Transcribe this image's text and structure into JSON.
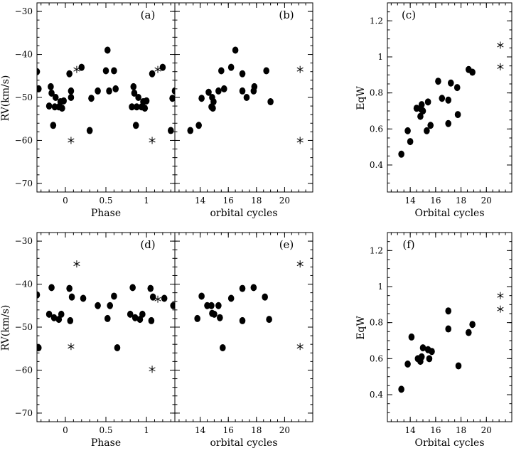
{
  "chart_data": [
    {
      "id": "a",
      "type": "scatter",
      "panel_label": "(a)",
      "xlabel": "Phase",
      "ylabel": "RV(km/s)",
      "xlim": [
        -0.35,
        1.35
      ],
      "ylim": [
        -72,
        -28
      ],
      "xticks": [
        0,
        0.5,
        1
      ],
      "xtick_labels": [
        "0",
        "0.5",
        "1"
      ],
      "yticks": [
        -30,
        -40,
        -50,
        -60,
        -70
      ],
      "ytick_labels": [
        "−30",
        "−40",
        "−50",
        "−60",
        "−70"
      ],
      "series": [
        {
          "marker": "dot",
          "points": [
            [
              -0.35,
              -44
            ],
            [
              -0.33,
              -48
            ],
            [
              -0.2,
              -52
            ],
            [
              -0.18,
              -47.5
            ],
            [
              -0.17,
              -49
            ],
            [
              -0.15,
              -56.5
            ],
            [
              -0.13,
              -52.2
            ],
            [
              -0.12,
              -50
            ],
            [
              -0.08,
              -52.2
            ],
            [
              -0.06,
              -51
            ],
            [
              -0.04,
              -52.5
            ],
            [
              -0.02,
              -50.8
            ],
            [
              0.05,
              -44.5
            ],
            [
              0.07,
              -50
            ],
            [
              0.07,
              -48.5
            ],
            [
              0.2,
              -43
            ],
            [
              0.3,
              -57.7
            ],
            [
              0.32,
              -50.2
            ],
            [
              0.4,
              -48.5
            ],
            [
              0.5,
              -43.8
            ],
            [
              0.52,
              -39
            ],
            [
              0.54,
              -48.5
            ],
            [
              0.6,
              -43.8
            ],
            [
              0.62,
              -48
            ],
            [
              0.82,
              -52.2
            ],
            [
              0.84,
              -47.5
            ],
            [
              0.85,
              -49
            ],
            [
              0.87,
              -56.5
            ],
            [
              0.88,
              -52.2
            ],
            [
              0.9,
              -50
            ],
            [
              0.94,
              -52.2
            ],
            [
              0.96,
              -51
            ],
            [
              0.98,
              -52.5
            ],
            [
              1.0,
              -50.8
            ],
            [
              1.07,
              -44.5
            ],
            [
              1.2,
              -43
            ],
            [
              1.3,
              -57.7
            ],
            [
              1.32,
              -50.2
            ],
            [
              1.35,
              -48.5
            ]
          ]
        },
        {
          "marker": "star",
          "points": [
            [
              0.07,
              -60
            ],
            [
              0.14,
              -43.5
            ],
            [
              1.07,
              -60
            ],
            [
              1.14,
              -43.5
            ]
          ]
        }
      ]
    },
    {
      "id": "b",
      "type": "scatter",
      "panel_label": "(b)",
      "xlabel": "orbital cycles",
      "xlim": [
        12.2,
        22
      ],
      "ylim": [
        -72,
        -28
      ],
      "xticks": [
        14,
        16,
        18,
        20
      ],
      "xtick_labels": [
        "14",
        "16",
        "18",
        "20"
      ],
      "series": [
        {
          "marker": "dot",
          "points": [
            [
              13.3,
              -57.7
            ],
            [
              13.9,
              -56.5
            ],
            [
              14.1,
              -50.2
            ],
            [
              14.6,
              -48.8
            ],
            [
              14.8,
              -52.2
            ],
            [
              14.85,
              -50
            ],
            [
              14.9,
              -52.5
            ],
            [
              14.95,
              -51
            ],
            [
              15.3,
              -48.5
            ],
            [
              15.5,
              -43.8
            ],
            [
              15.7,
              -48
            ],
            [
              16.2,
              -43
            ],
            [
              16.5,
              -39
            ],
            [
              17.0,
              -44.5
            ],
            [
              17.0,
              -48.5
            ],
            [
              17.3,
              -50
            ],
            [
              17.8,
              -48.5
            ],
            [
              17.85,
              -47.5
            ],
            [
              18.7,
              -43.8
            ],
            [
              19.0,
              -51
            ]
          ]
        },
        {
          "marker": "star",
          "points": [
            [
              21.1,
              -43.5
            ],
            [
              21.1,
              -60
            ]
          ]
        }
      ]
    },
    {
      "id": "c",
      "type": "scatter",
      "panel_label": "(c)",
      "xlabel": "Orbital cycles",
      "ylabel": "EqW",
      "xlim": [
        12.2,
        22
      ],
      "ylim": [
        0.25,
        1.3
      ],
      "xticks": [
        14,
        16,
        18,
        20
      ],
      "xtick_labels": [
        "14",
        "16",
        "18",
        "20"
      ],
      "yticks": [
        0.4,
        0.6,
        0.8,
        1,
        1.2
      ],
      "ytick_labels": [
        "0.4",
        "0.6",
        "0.8",
        "1",
        "1.2"
      ],
      "series": [
        {
          "marker": "dot",
          "points": [
            [
              13.3,
              0.46
            ],
            [
              13.8,
              0.59
            ],
            [
              14.0,
              0.53
            ],
            [
              14.5,
              0.715
            ],
            [
              14.8,
              0.67
            ],
            [
              14.85,
              0.71
            ],
            [
              14.9,
              0.735
            ],
            [
              15.0,
              0.7
            ],
            [
              15.3,
              0.59
            ],
            [
              15.4,
              0.75
            ],
            [
              15.6,
              0.62
            ],
            [
              16.2,
              0.865
            ],
            [
              16.5,
              0.77
            ],
            [
              17.0,
              0.76
            ],
            [
              17.0,
              0.63
            ],
            [
              17.2,
              0.855
            ],
            [
              17.7,
              0.83
            ],
            [
              17.75,
              0.68
            ],
            [
              18.6,
              0.93
            ],
            [
              18.9,
              0.915
            ]
          ]
        },
        {
          "marker": "star",
          "points": [
            [
              21.1,
              1.065
            ],
            [
              21.1,
              0.945
            ]
          ]
        }
      ]
    },
    {
      "id": "d",
      "type": "scatter",
      "panel_label": "(d)",
      "xlabel": "Phase",
      "ylabel": "RV(km/s)",
      "xlim": [
        -0.35,
        1.35
      ],
      "ylim": [
        -72,
        -28
      ],
      "xticks": [
        0,
        0.5,
        1
      ],
      "xtick_labels": [
        "0",
        "0.5",
        "1"
      ],
      "yticks": [
        -30,
        -40,
        -50,
        -60,
        -70
      ],
      "ytick_labels": [
        "−30",
        "−40",
        "−50",
        "−60",
        "−70"
      ],
      "series": [
        {
          "marker": "dot",
          "points": [
            [
              -0.35,
              -42.5
            ],
            [
              -0.33,
              -54.8
            ],
            [
              -0.2,
              -47
            ],
            [
              -0.17,
              -40.8
            ],
            [
              -0.14,
              -47.8
            ],
            [
              -0.08,
              -48.2
            ],
            [
              -0.05,
              -47
            ],
            [
              0.05,
              -41
            ],
            [
              0.06,
              -48.5
            ],
            [
              0.08,
              -43
            ],
            [
              0.22,
              -43.3
            ],
            [
              0.4,
              -45
            ],
            [
              0.52,
              -48
            ],
            [
              0.55,
              -45
            ],
            [
              0.6,
              -42.8
            ],
            [
              0.64,
              -54.8
            ],
            [
              0.8,
              -47
            ],
            [
              0.83,
              -40.8
            ],
            [
              0.86,
              -47.8
            ],
            [
              0.92,
              -48.2
            ],
            [
              0.95,
              -47
            ],
            [
              1.05,
              -41
            ],
            [
              1.06,
              -48.5
            ],
            [
              1.08,
              -43
            ],
            [
              1.22,
              -43.3
            ],
            [
              1.33,
              -45
            ]
          ]
        },
        {
          "marker": "star",
          "points": [
            [
              0.07,
              -54.5
            ],
            [
              0.14,
              -35.3
            ],
            [
              1.07,
              -59.8
            ],
            [
              1.14,
              -43.5
            ]
          ]
        }
      ]
    },
    {
      "id": "e",
      "type": "scatter",
      "panel_label": "(e)",
      "xlabel": "orbital cycles",
      "xlim": [
        12.2,
        22
      ],
      "ylim": [
        -72,
        -28
      ],
      "xticks": [
        14,
        16,
        18,
        20
      ],
      "xtick_labels": [
        "14",
        "16",
        "18",
        "20"
      ],
      "series": [
        {
          "marker": "dot",
          "points": [
            [
              13.8,
              -48
            ],
            [
              14.1,
              -42.8
            ],
            [
              14.5,
              -45
            ],
            [
              14.8,
              -45
            ],
            [
              14.85,
              -46.8
            ],
            [
              15.0,
              -47
            ],
            [
              15.3,
              -45
            ],
            [
              15.4,
              -47.8
            ],
            [
              15.6,
              -54.8
            ],
            [
              16.2,
              -43.3
            ],
            [
              17.0,
              -41
            ],
            [
              17.0,
              -48.5
            ],
            [
              17.8,
              -40.8
            ],
            [
              18.6,
              -43
            ],
            [
              18.9,
              -48.2
            ]
          ]
        },
        {
          "marker": "star",
          "points": [
            [
              21.1,
              -35.3
            ],
            [
              21.1,
              -54.5
            ]
          ]
        }
      ]
    },
    {
      "id": "f",
      "type": "scatter",
      "panel_label": "(f)",
      "xlabel": "Orbital cycles",
      "ylabel": "EqW",
      "xlim": [
        12.2,
        22
      ],
      "ylim": [
        0.25,
        1.3
      ],
      "xticks": [
        14,
        16,
        18,
        20
      ],
      "xtick_labels": [
        "14",
        "16",
        "18",
        "20"
      ],
      "yticks": [
        0.4,
        0.6,
        0.8,
        1,
        1.2
      ],
      "ytick_labels": [
        "0.4",
        "0.6",
        "0.8",
        "1",
        "1.2"
      ],
      "series": [
        {
          "marker": "dot",
          "points": [
            [
              13.3,
              0.43
            ],
            [
              13.8,
              0.57
            ],
            [
              14.1,
              0.72
            ],
            [
              14.6,
              0.6
            ],
            [
              14.8,
              0.585
            ],
            [
              14.9,
              0.61
            ],
            [
              15.0,
              0.66
            ],
            [
              15.4,
              0.65
            ],
            [
              15.5,
              0.6
            ],
            [
              15.7,
              0.64
            ],
            [
              17.0,
              0.865
            ],
            [
              17.0,
              0.765
            ],
            [
              17.8,
              0.56
            ],
            [
              18.6,
              0.745
            ],
            [
              18.9,
              0.79
            ]
          ]
        },
        {
          "marker": "star",
          "points": [
            [
              21.1,
              0.95
            ],
            [
              21.1,
              0.875
            ]
          ]
        }
      ]
    }
  ]
}
